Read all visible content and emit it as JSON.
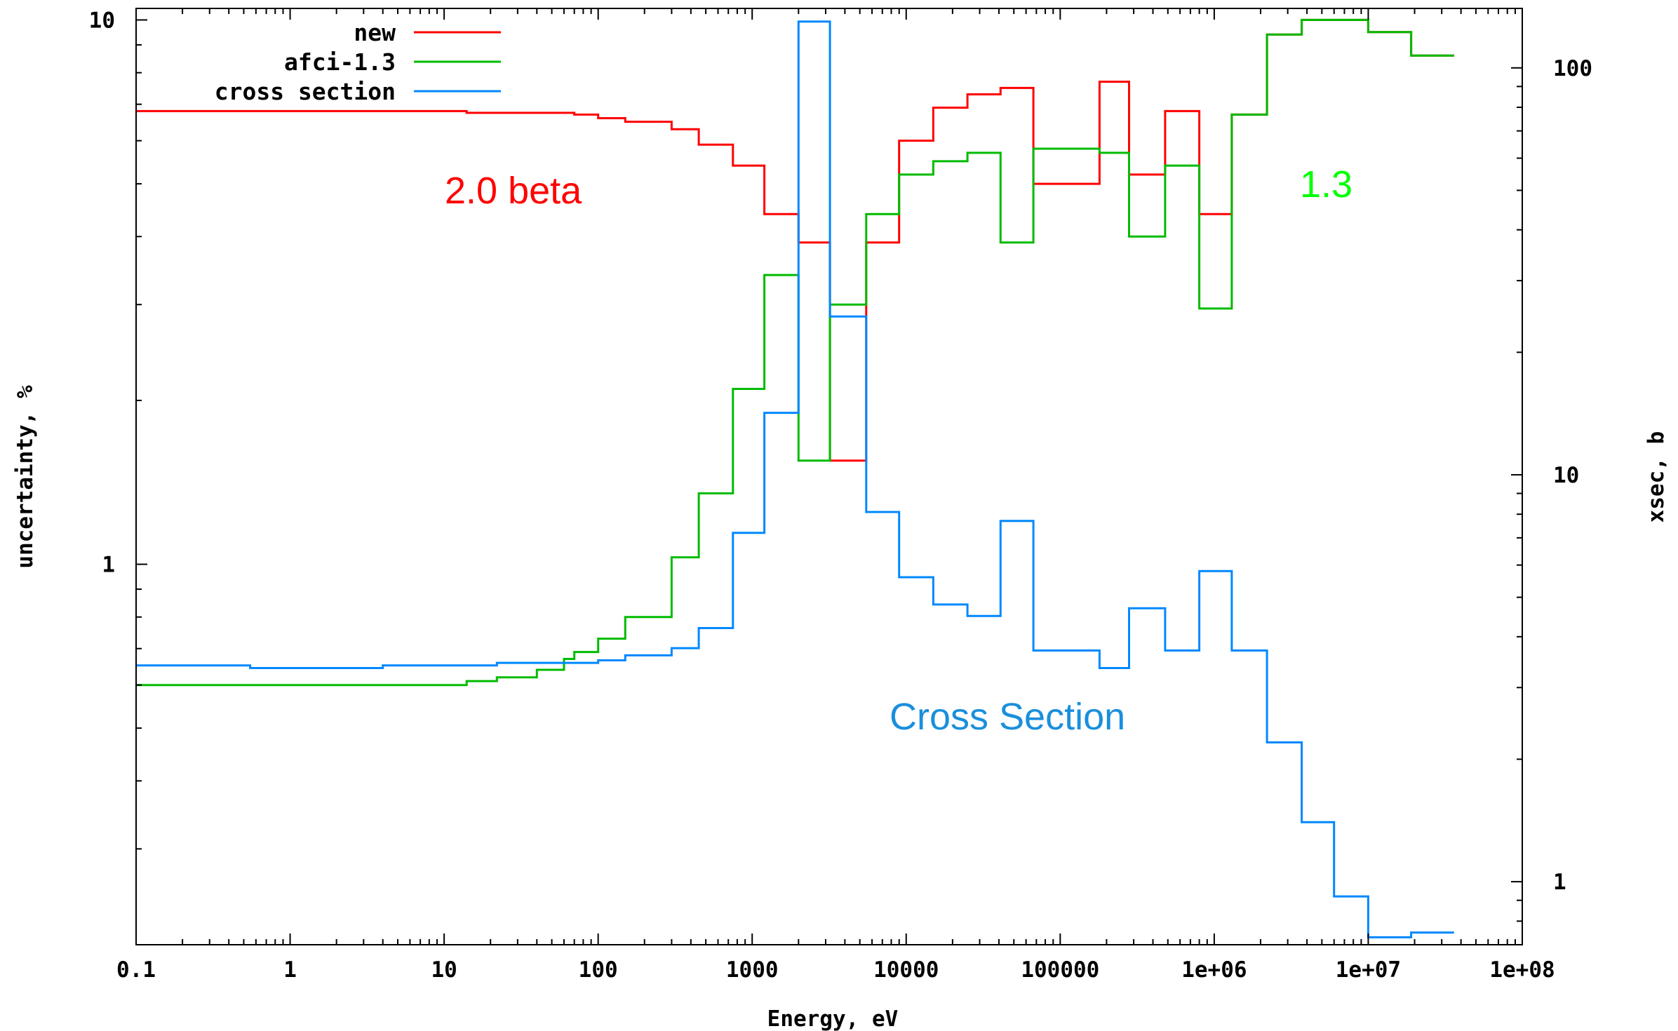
{
  "chart_data": {
    "type": "line",
    "step": true,
    "xscale": "log",
    "xlim": [
      0.1,
      100000000
    ],
    "ylim": [
      0.2,
      10.5
    ],
    "y2lim": [
      0.7,
      140
    ],
    "y2scale": "log",
    "xlabel": "Energy, eV",
    "ylabel": "uncertainty, %",
    "y2label": "xsec, b",
    "x_ticks": [
      "0.1",
      "1",
      "10",
      "100",
      "1000",
      "10000",
      "100000",
      "1e+06",
      "1e+07",
      "1e+08"
    ],
    "y_ticks": [
      "10",
      "1"
    ],
    "y2_ticks": [
      "100",
      "10",
      "1"
    ],
    "grid": false,
    "legend_position": "top-left",
    "x_edges": [
      0.1,
      0.55,
      4,
      14,
      22,
      40,
      60,
      70,
      100,
      150,
      300,
      450,
      750,
      1200,
      2000,
      3200,
      5500,
      9000,
      15000,
      25000,
      41000,
      67000,
      180000,
      280000,
      480000,
      800000,
      1300000,
      2200000,
      3700000,
      6000000,
      10000000,
      19000000
    ],
    "series": [
      {
        "name": "new",
        "color": "#ff0000",
        "axis": "y1",
        "values": [
          6.8,
          6.8,
          6.8,
          6.75,
          6.75,
          6.75,
          6.75,
          6.7,
          6.6,
          6.5,
          6.3,
          5.9,
          5.4,
          4.4,
          3.9,
          1.55,
          3.9,
          6.0,
          6.9,
          7.3,
          7.5,
          5.0,
          7.7,
          5.2,
          6.8,
          4.4,
          6.7,
          9.4,
          10.0,
          10.0,
          9.5,
          8.6
        ]
      },
      {
        "name": "afci-1.3",
        "color": "#00bb00",
        "axis": "y1",
        "values": [
          0.6,
          0.6,
          0.6,
          0.61,
          0.62,
          0.64,
          0.67,
          0.69,
          0.73,
          0.8,
          1.03,
          1.35,
          2.1,
          3.4,
          1.55,
          3.0,
          4.4,
          5.2,
          5.5,
          5.7,
          3.9,
          5.8,
          5.7,
          4.0,
          5.4,
          2.95,
          6.7,
          9.4,
          10.0,
          10.0,
          9.5,
          8.6
        ]
      },
      {
        "name": "cross section",
        "color": "#0088ff",
        "axis": "y2",
        "values": [
          3.4,
          3.35,
          3.4,
          3.4,
          3.45,
          3.45,
          3.45,
          3.45,
          3.5,
          3.6,
          3.75,
          4.2,
          7.2,
          14.2,
          130,
          24.5,
          8.1,
          5.6,
          4.8,
          4.5,
          7.7,
          3.7,
          3.35,
          4.7,
          3.7,
          5.8,
          3.7,
          2.2,
          1.4,
          0.92,
          0.73,
          0.75
        ]
      }
    ],
    "annotations": [
      {
        "text": "2.0 beta",
        "color": "#ff0000"
      },
      {
        "text": "1.3",
        "color": "#00ff00"
      },
      {
        "text": "Cross Section",
        "color": "#1a8fdc"
      }
    ]
  }
}
